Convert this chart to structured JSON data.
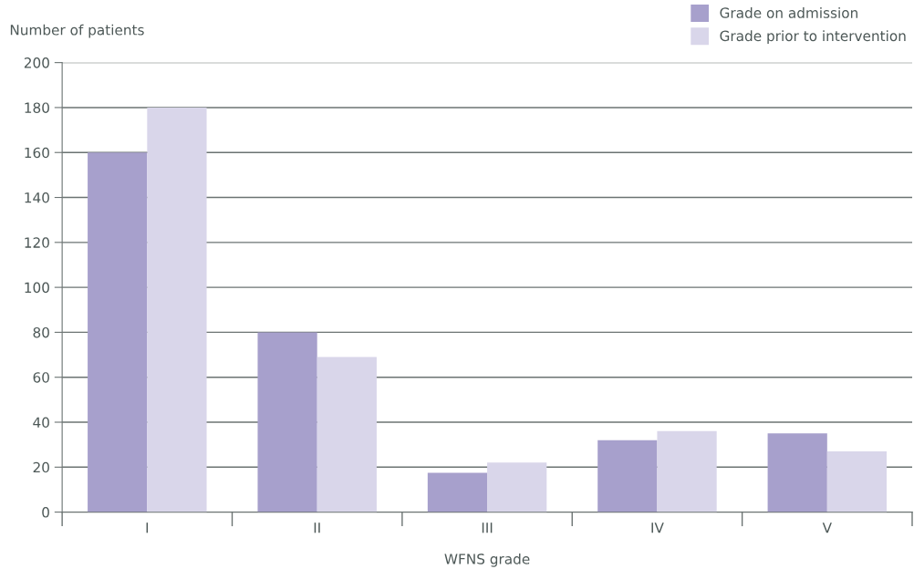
{
  "chart_data": {
    "type": "bar",
    "ylabel": "Number of patients",
    "xlabel": "WFNS grade",
    "categories": [
      "I",
      "II",
      "III",
      "IV",
      "V"
    ],
    "series": [
      {
        "name": "Grade on admission",
        "color": "#a7a0cc",
        "values": [
          160,
          80,
          17.5,
          32,
          35
        ]
      },
      {
        "name": "Grade prior to intervention",
        "color": "#d9d6ea",
        "values": [
          180,
          69,
          22,
          36,
          27
        ]
      }
    ],
    "ylim": [
      0,
      200
    ],
    "yticks": [
      0,
      20,
      40,
      60,
      80,
      100,
      120,
      140,
      160,
      180,
      200
    ],
    "grid": "y",
    "legend": "top right"
  }
}
